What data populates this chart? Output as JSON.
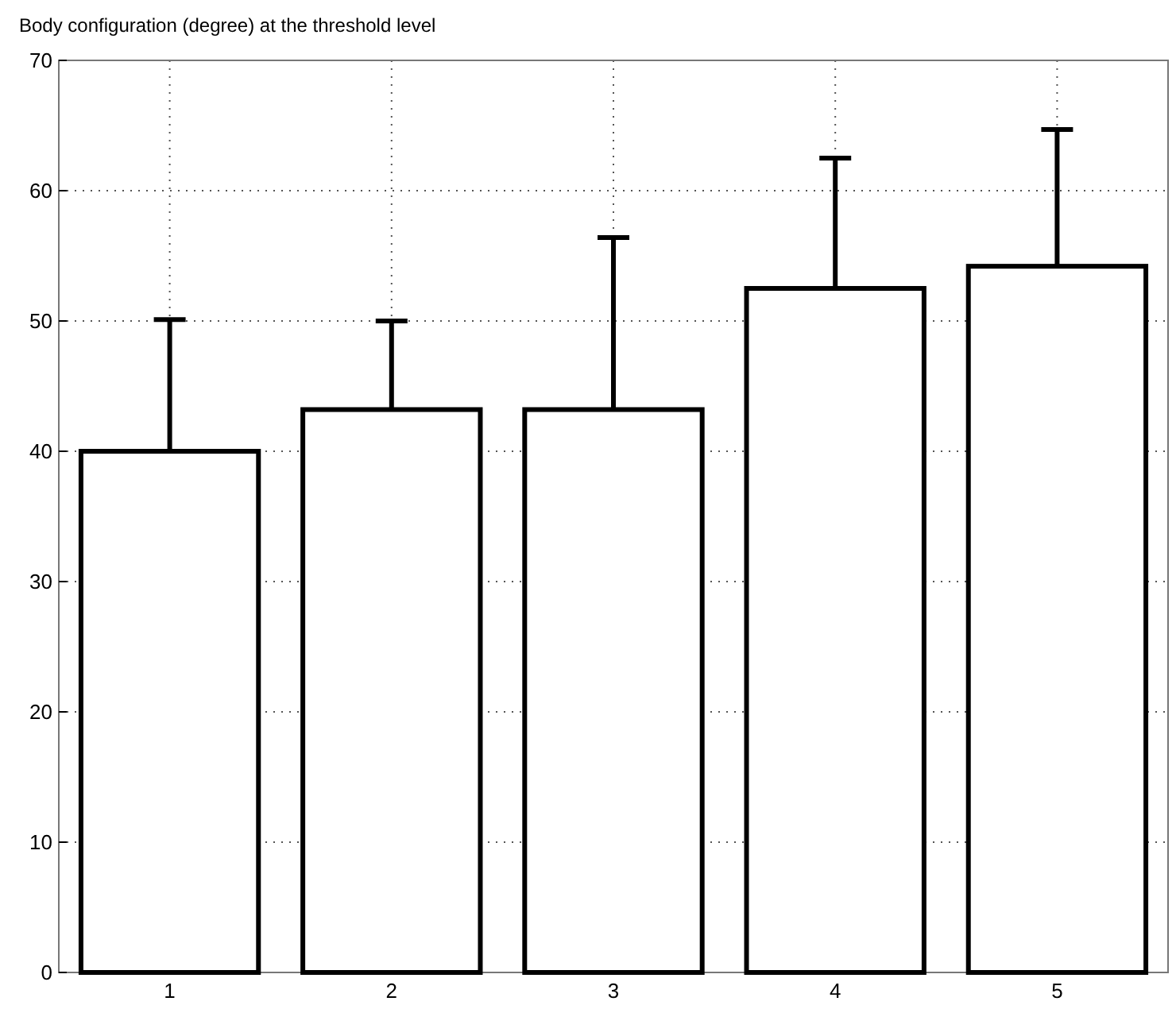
{
  "chart_data": {
    "type": "bar",
    "title": "Body configuration (degree) at the threshold level",
    "categories": [
      "1",
      "2",
      "3",
      "4",
      "5"
    ],
    "values": [
      40,
      43.2,
      43.2,
      52.5,
      54.2
    ],
    "errors": [
      [
        40,
        50.1
      ],
      [
        43.2,
        50
      ],
      [
        43.2,
        56.4
      ],
      [
        52.5,
        62.5
      ],
      [
        54.2,
        64.7
      ]
    ],
    "color": "#ffffff",
    "ylim": [
      0,
      70
    ],
    "yticks": [
      0,
      10,
      20,
      30,
      40,
      50,
      60,
      70
    ],
    "grid": true
  }
}
